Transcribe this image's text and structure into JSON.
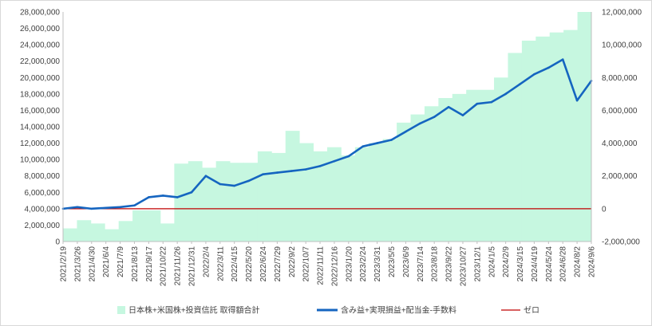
{
  "chart_data": {
    "type": "bar+line",
    "title": "",
    "xlabel": "",
    "ylabel": "",
    "y_left_range": [
      0,
      28000000
    ],
    "y_right_range": [
      -2000000,
      12000000
    ],
    "y_left_ticks": [
      "0",
      "2,000,000",
      "4,000,000",
      "6,000,000",
      "8,000,000",
      "10,000,000",
      "12,000,000",
      "14,000,000",
      "16,000,000",
      "18,000,000",
      "20,000,000",
      "22,000,000",
      "24,000,000",
      "26,000,000",
      "28,000,000"
    ],
    "y_right_ticks": [
      "-2,000,000",
      "0",
      "2,000,000",
      "4,000,000",
      "6,000,000",
      "8,000,000",
      "10,000,000",
      "12,000,000"
    ],
    "x_tick_labels": [
      "2021/2/19",
      "2021/3/26",
      "2021/4/30",
      "2021/6/4",
      "2021/7/9",
      "2021/8/13",
      "2021/9/17",
      "2021/10/22",
      "2021/11/26",
      "2021/12/31",
      "2022/2/4",
      "2022/3/11",
      "2022/4/15",
      "2022/5/20",
      "2022/6/24",
      "2022/7/29",
      "2022/9/2",
      "2022/10/7",
      "2022/11/11",
      "2022/12/16",
      "2023/1/20",
      "2023/2/24",
      "2023/3/31",
      "2023/5/5",
      "2023/6/9",
      "2023/7/14",
      "2023/8/18",
      "2023/9/22",
      "2023/10/27",
      "2023/12/1",
      "2024/1/5",
      "2024/2/9",
      "2024/3/15",
      "2024/4/19",
      "2024/5/24",
      "2024/6/28",
      "2024/8/2",
      "2024/9/6"
    ],
    "legend_placement": "bottom",
    "grid": false,
    "colors": {
      "bars": "#c6f7e0",
      "line": "#1565c0",
      "zero": "#c00000"
    },
    "series": [
      {
        "name": "日本株+米国株+投資信託 取得額合計",
        "type": "bar",
        "axis": "left",
        "values": [
          1600000,
          2600000,
          2200000,
          1500000,
          2500000,
          3800000,
          3800000,
          2200000,
          9500000,
          9800000,
          9000000,
          9800000,
          9600000,
          9600000,
          11000000,
          10800000,
          13500000,
          12000000,
          11000000,
          11500000,
          10500000,
          11500000,
          12000000,
          12500000,
          14500000,
          15500000,
          16500000,
          17500000,
          18000000,
          18500000,
          18500000,
          20000000,
          23000000,
          24500000,
          25000000,
          25500000,
          25800000,
          28000000
        ]
      },
      {
        "name": "含み益+実現損益+配当金-手数料",
        "type": "line",
        "axis": "right",
        "values": [
          0,
          100000,
          0,
          50000,
          100000,
          200000,
          700000,
          800000,
          700000,
          1000000,
          2000000,
          1500000,
          1400000,
          1700000,
          2100000,
          2200000,
          2300000,
          2400000,
          2600000,
          2900000,
          3200000,
          3800000,
          4000000,
          4200000,
          4700000,
          5200000,
          5600000,
          6200000,
          5700000,
          6400000,
          6500000,
          7000000,
          7600000,
          8200000,
          8600000,
          9100000,
          6600000,
          7800000
        ]
      },
      {
        "name": "ゼロ",
        "type": "line",
        "axis": "right",
        "values": [
          0,
          0
        ]
      }
    ]
  }
}
